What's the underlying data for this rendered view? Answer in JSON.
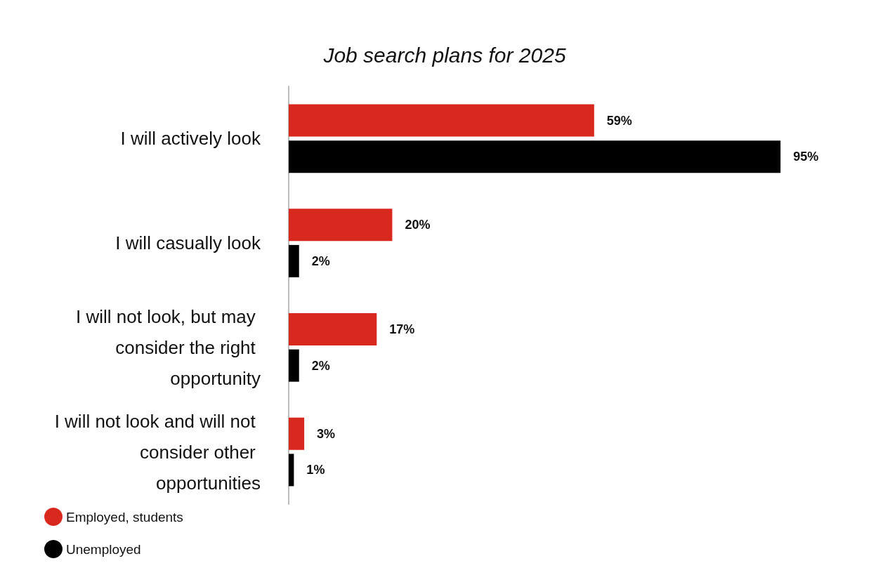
{
  "chart_data": {
    "type": "bar",
    "orientation": "horizontal",
    "title": "Job search plans for 2025",
    "categories": [
      "I will actively look",
      "I will casually look",
      "I will not look, but may consider the right opportunity",
      "I will not look and will not consider other opportunities"
    ],
    "series": [
      {
        "name": "Employed, students",
        "color": "#d9281e",
        "values": [
          59,
          20,
          17,
          3
        ],
        "value_labels": [
          "59%",
          "20%",
          "17%",
          "3%"
        ]
      },
      {
        "name": "Unemployed",
        "color": "#000000",
        "values": [
          95,
          2,
          2,
          1
        ],
        "value_labels": [
          "95%",
          "2%",
          "2%",
          "1%"
        ]
      }
    ],
    "legend": "bottom left",
    "tick_labels": "y"
  }
}
